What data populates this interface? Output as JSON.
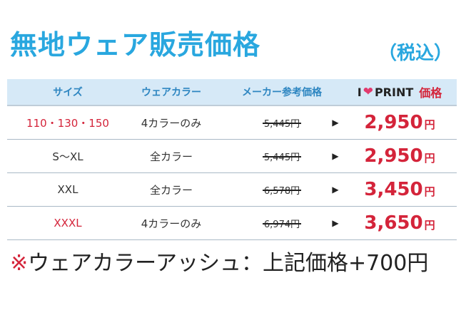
{
  "title": "無地ウェア販売価格",
  "tax_note": "（税込）",
  "header": {
    "size": "サイズ",
    "color": "ウェアカラー",
    "maker_price": "メーカー参考価格",
    "brand_i": "I",
    "brand_print": "PRINT",
    "brand_price": "価格"
  },
  "rows": [
    {
      "size": "110・130・150",
      "size_red": true,
      "color": "4カラーのみ",
      "ref_price": "5,445円",
      "arrow": "▶",
      "price": "2,950",
      "yen": "円"
    },
    {
      "size": "S～XL",
      "size_red": false,
      "color": "全カラー",
      "ref_price": "5,445円",
      "arrow": "▶",
      "price": "2,950",
      "yen": "円"
    },
    {
      "size": "XXL",
      "size_red": false,
      "color": "全カラー",
      "ref_price": "6,578円",
      "arrow": "▶",
      "price": "3,450",
      "yen": "円"
    },
    {
      "size": "XXXL",
      "size_red": true,
      "color": "4カラーのみ",
      "ref_price": "6,974円",
      "arrow": "▶",
      "price": "3,650",
      "yen": "円"
    }
  ],
  "footnote_mark": "※",
  "footnote": "ウェアカラーアッシュ：上記価格+700円",
  "colors": {
    "accent_blue": "#29a7df",
    "price_red": "#d4243a",
    "header_bg": "#d6e9f7",
    "heart": "#e23a6e"
  },
  "icons": [
    "heart-icon",
    "arrow-right-icon"
  ]
}
